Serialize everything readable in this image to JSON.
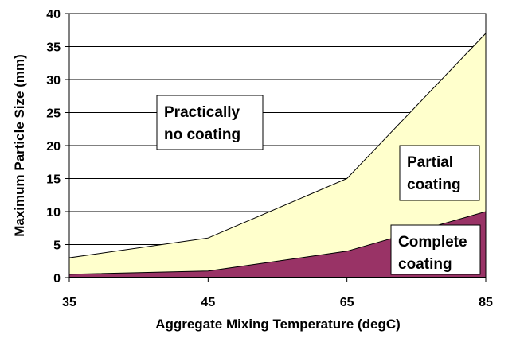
{
  "chart_data": {
    "type": "area",
    "title": "",
    "xlabel": "Aggregate Mixing Temperature (degC)",
    "ylabel": "Maximum Particle Size (mm)",
    "categories": [
      "35",
      "45",
      "65",
      "85"
    ],
    "ylim": [
      0,
      40
    ],
    "yticks": [
      0,
      5,
      10,
      15,
      20,
      25,
      30,
      35,
      40
    ],
    "grid": true,
    "series": [
      {
        "values": [
          0.5,
          1,
          4,
          10
        ],
        "color": "#993366"
      },
      {
        "values": [
          3,
          6,
          15,
          37
        ],
        "color": "#FFFFCC"
      }
    ],
    "annotations": [
      {
        "lines": [
          "Practically",
          "no coating"
        ]
      },
      {
        "lines": [
          "Partial",
          "coating"
        ]
      },
      {
        "lines": [
          "Complete",
          "coating"
        ]
      }
    ]
  }
}
